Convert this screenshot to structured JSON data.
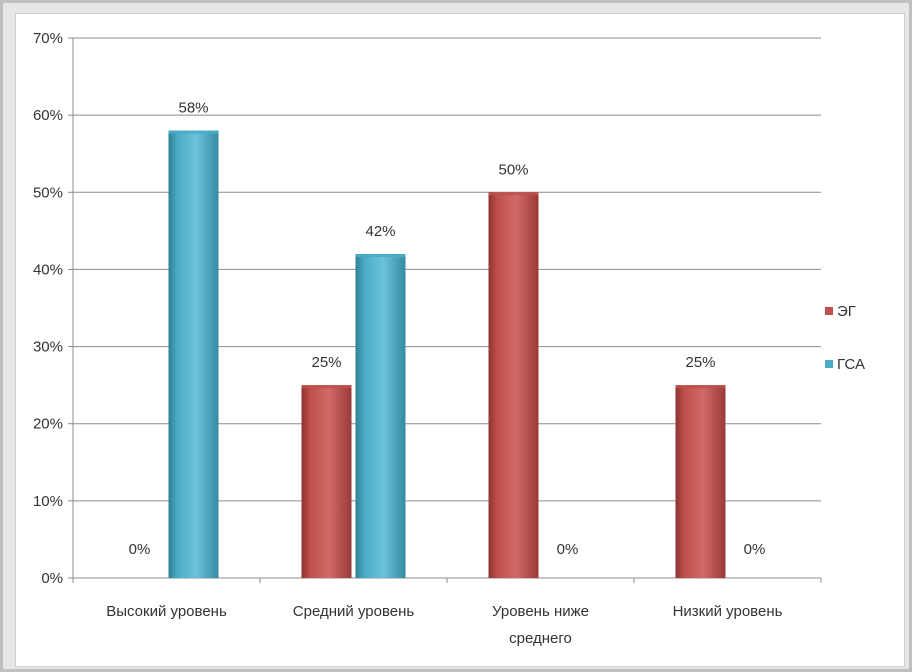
{
  "chart_data": {
    "type": "bar",
    "categories": [
      [
        "Высокий уровень"
      ],
      [
        "Средний уровень"
      ],
      [
        "Уровень ниже",
        "среднего"
      ],
      [
        "Низкий уровень"
      ]
    ],
    "series": [
      {
        "name": "ЭГ",
        "color": "#c0504d",
        "values": [
          0,
          25,
          50,
          25
        ],
        "labels": [
          "0%",
          "25%",
          "50%",
          "25%"
        ]
      },
      {
        "name": "ГСА",
        "color": "#4bacc6",
        "values": [
          58,
          42,
          0,
          0
        ],
        "labels": [
          "58%",
          "42%",
          "0%",
          "0%"
        ]
      }
    ],
    "y_ticks": [
      "0%",
      "10%",
      "20%",
      "30%",
      "40%",
      "50%",
      "60%",
      "70%"
    ],
    "ylim": [
      0,
      70
    ],
    "grid": true,
    "legend_position": "right"
  }
}
